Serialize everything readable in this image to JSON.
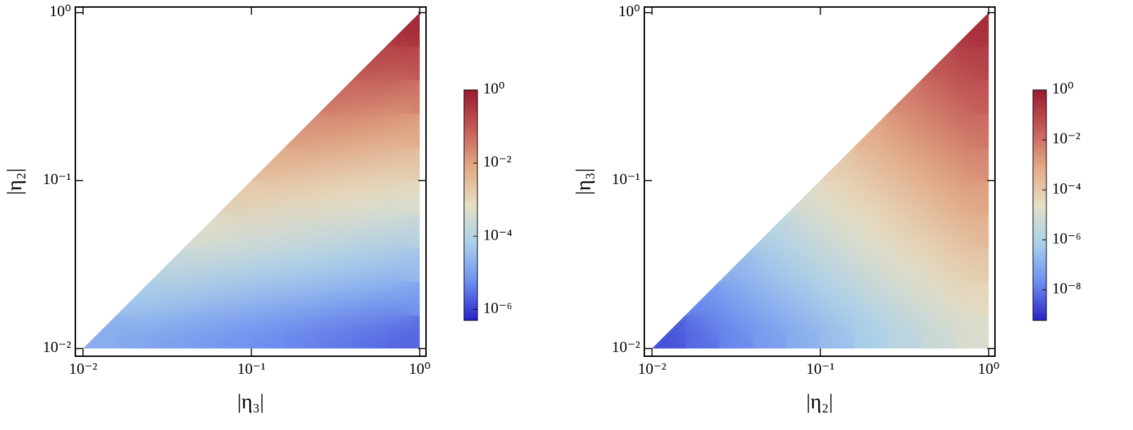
{
  "chart_data": [
    {
      "type": "heatmap",
      "xlabel": "|η₃|",
      "ylabel": "|η₂|",
      "xscale": "log",
      "yscale": "log",
      "xlim": [
        0.009,
        1.09
      ],
      "ylim": [
        0.009,
        1.08
      ],
      "xticks": [
        {
          "value": 0.01,
          "label": "10⁻²"
        },
        {
          "value": 0.1,
          "label": "10⁻¹"
        },
        {
          "value": 1,
          "label": "10⁰"
        }
      ],
      "yticks": [
        {
          "value": 0.01,
          "label": "10⁻²"
        },
        {
          "value": 0.1,
          "label": "10⁻¹"
        },
        {
          "value": 1,
          "label": "10⁰"
        }
      ],
      "xbins": [
        0.01,
        0.0158,
        0.0251,
        0.0398,
        0.0631,
        0.1,
        0.158,
        0.251,
        0.398,
        0.631,
        1
      ],
      "ybins": [
        0.01,
        0.0158,
        0.0251,
        0.0398,
        0.0631,
        0.1,
        0.158,
        0.251,
        0.398,
        0.631,
        1
      ],
      "z": [
        [
          1.78e-05,
          1.41e-05,
          1.12e-05,
          8.91e-06,
          7.08e-06,
          5.62e-06,
          4.47e-06,
          3.55e-06,
          2.82e-06,
          2.24e-06
        ],
        [
          null,
          5.62e-05,
          4.47e-05,
          3.55e-05,
          2.82e-05,
          2.24e-05,
          1.78e-05,
          1.41e-05,
          1.12e-05,
          8.91e-06
        ],
        [
          null,
          null,
          0.000178,
          0.000141,
          0.000112,
          8.91e-05,
          7.08e-05,
          5.62e-05,
          4.47e-05,
          3.55e-05
        ],
        [
          null,
          null,
          null,
          0.000562,
          0.000447,
          0.000355,
          0.000282,
          0.000224,
          0.000178,
          0.000141
        ],
        [
          null,
          null,
          null,
          null,
          0.00178,
          0.00141,
          0.00112,
          0.000891,
          0.000708,
          0.000562
        ],
        [
          null,
          null,
          null,
          null,
          null,
          0.00562,
          0.00447,
          0.00355,
          0.00282,
          0.00224
        ],
        [
          null,
          null,
          null,
          null,
          null,
          null,
          0.0178,
          0.0141,
          0.0112,
          0.00891
        ],
        [
          null,
          null,
          null,
          null,
          null,
          null,
          null,
          0.0562,
          0.0447,
          0.0355
        ],
        [
          null,
          null,
          null,
          null,
          null,
          null,
          null,
          null,
          0.178,
          0.141
        ],
        [
          null,
          null,
          null,
          null,
          null,
          null,
          null,
          null,
          null,
          0.562
        ]
      ],
      "colormap": [
        "#2a22c8",
        "#6d8ef0",
        "#a9d0ea",
        "#e6dfc4",
        "#e2a985",
        "#c45a58",
        "#9a1b2e"
      ],
      "colorbar": {
        "lim": [
          5e-07,
          1
        ],
        "ticks": [
          {
            "value": 1,
            "label": "10⁰"
          },
          {
            "value": 0.01,
            "label": "10⁻²"
          },
          {
            "value": 0.0001,
            "label": "10⁻⁴"
          },
          {
            "value": 1e-06,
            "label": "10⁻⁶"
          }
        ]
      }
    },
    {
      "type": "heatmap",
      "xlabel": "|η₂|",
      "ylabel": "|η₃|",
      "xscale": "log",
      "yscale": "log",
      "xlim": [
        0.009,
        1.09
      ],
      "ylim": [
        0.009,
        1.08
      ],
      "xticks": [
        {
          "value": 0.01,
          "label": "10⁻²"
        },
        {
          "value": 0.1,
          "label": "10⁻¹"
        },
        {
          "value": 1,
          "label": "10⁰"
        }
      ],
      "yticks": [
        {
          "value": 0.01,
          "label": "10⁻²"
        },
        {
          "value": 0.1,
          "label": "10⁻¹"
        },
        {
          "value": 1,
          "label": "10⁰"
        }
      ],
      "xbins": [
        0.01,
        0.0158,
        0.0251,
        0.0398,
        0.0631,
        0.1,
        0.158,
        0.251,
        0.398,
        0.631,
        1
      ],
      "ybins": [
        0.01,
        0.0158,
        0.0251,
        0.0398,
        0.0631,
        0.1,
        0.158,
        0.251,
        0.398,
        0.631,
        1
      ],
      "z": [
        [
          2.82e-09,
          7.08e-09,
          1.78e-08,
          4.47e-08,
          1.12e-07,
          2.82e-07,
          7.08e-07,
          1.78e-06,
          4.47e-06,
          1.12e-05
        ],
        [
          null,
          2.24e-08,
          5.62e-08,
          1.41e-07,
          3.55e-07,
          8.91e-07,
          2.24e-06,
          5.62e-06,
          1.41e-05,
          3.55e-05
        ],
        [
          null,
          null,
          1.78e-07,
          4.47e-07,
          1.12e-06,
          2.82e-06,
          7.08e-06,
          1.78e-05,
          4.47e-05,
          0.000112
        ],
        [
          null,
          null,
          null,
          1.41e-06,
          3.55e-06,
          8.91e-06,
          2.24e-05,
          5.62e-05,
          0.000141,
          0.000355
        ],
        [
          null,
          null,
          null,
          null,
          1.12e-05,
          2.82e-05,
          7.08e-05,
          0.000178,
          0.000447,
          0.00112
        ],
        [
          null,
          null,
          null,
          null,
          null,
          8.91e-05,
          0.000224,
          0.000562,
          0.00141,
          0.00355
        ],
        [
          null,
          null,
          null,
          null,
          null,
          null,
          0.000708,
          0.00178,
          0.00447,
          0.0112
        ],
        [
          null,
          null,
          null,
          null,
          null,
          null,
          null,
          0.00562,
          0.0141,
          0.0355
        ],
        [
          null,
          null,
          null,
          null,
          null,
          null,
          null,
          null,
          0.0447,
          0.112
        ],
        [
          null,
          null,
          null,
          null,
          null,
          null,
          null,
          null,
          null,
          0.355
        ]
      ],
      "colormap": [
        "#2a22c8",
        "#6d8ef0",
        "#a9d0ea",
        "#e6dfc4",
        "#e2a985",
        "#c45a58",
        "#9a1b2e"
      ],
      "colorbar": {
        "lim": [
          6e-10,
          1
        ],
        "ticks": [
          {
            "value": 1,
            "label": "10⁰"
          },
          {
            "value": 0.01,
            "label": "10⁻²"
          },
          {
            "value": 0.0001,
            "label": "10⁻⁴"
          },
          {
            "value": 1e-06,
            "label": "10⁻⁶"
          },
          {
            "value": 1e-08,
            "label": "10⁻⁸"
          }
        ]
      }
    }
  ]
}
